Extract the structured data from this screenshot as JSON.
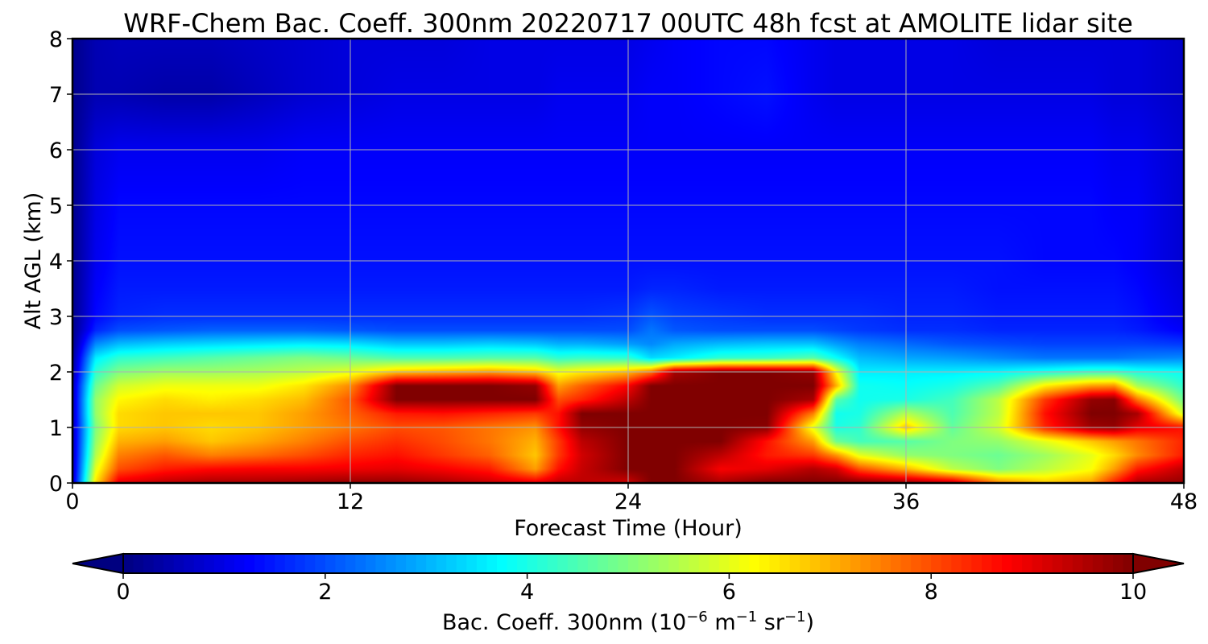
{
  "chart_data": {
    "type": "heatmap",
    "title": "WRF-Chem Bac. Coeff. 300nm  20220717 00UTC 48h fcst at AMOLITE lidar site",
    "xlabel": "Forecast Time (Hour)",
    "ylabel": "Alt AGL (km)",
    "x_ticks": [
      0,
      12,
      24,
      36,
      48
    ],
    "y_ticks": [
      0,
      1,
      2,
      3,
      4,
      5,
      6,
      7,
      8
    ],
    "xlim": [
      0,
      48
    ],
    "ylim": [
      0,
      8
    ],
    "grid": true,
    "colormap": "jet",
    "colorbar": {
      "label_main": "Bac. Coeff. 300nm  (10",
      "label_exp1": "−6",
      "label_mid": " m",
      "label_exp2": "−1",
      "label_sr": " sr",
      "label_exp3": "−1",
      "label_close": ")",
      "ticks": [
        0,
        2,
        4,
        6,
        8,
        10
      ],
      "range": [
        0,
        10
      ],
      "extend": "both",
      "placement": "bottom"
    },
    "x": [
      0,
      1,
      2,
      4,
      6,
      8,
      10,
      12,
      14,
      16,
      18,
      20,
      21,
      22,
      24,
      25,
      26,
      28,
      30,
      32,
      33,
      34,
      36,
      38,
      40,
      42,
      44,
      45,
      46,
      48
    ],
    "y": [
      0,
      0.25,
      0.5,
      0.75,
      1.0,
      1.25,
      1.5,
      1.75,
      2.0,
      2.25,
      2.5,
      2.75,
      3.0,
      3.5,
      4.0,
      5.0,
      6.0,
      7.0,
      8.0
    ],
    "z": [
      [
        0.6,
        6.5,
        9.0,
        9.4,
        9.6,
        9.6,
        9.7,
        9.8,
        9.8,
        9.6,
        9.3,
        9.0,
        9.4,
        9.4,
        9.2,
        10.0,
        10.0,
        9.6,
        10.0,
        10.0,
        10.0,
        10.0,
        9.8,
        9.4,
        7.5,
        6.8,
        7.2,
        8.5,
        9.6,
        9.8
      ],
      [
        0.5,
        6.0,
        8.0,
        8.5,
        8.7,
        8.8,
        8.8,
        8.9,
        9.0,
        8.8,
        8.5,
        7.2,
        8.6,
        9.3,
        10.0,
        10.0,
        10.0,
        8.8,
        9.0,
        9.5,
        9.2,
        8.0,
        7.0,
        5.6,
        5.0,
        5.6,
        6.2,
        7.2,
        8.5,
        9.4
      ],
      [
        0.5,
        5.5,
        7.5,
        7.9,
        7.5,
        7.7,
        8.0,
        8.4,
        8.6,
        8.2,
        7.8,
        6.8,
        8.2,
        9.2,
        10.0,
        10.0,
        10.0,
        9.4,
        8.5,
        8.2,
        7.3,
        6.0,
        5.2,
        5.0,
        4.8,
        5.3,
        6.0,
        6.6,
        7.4,
        8.5
      ],
      [
        0.5,
        5.2,
        7.0,
        7.2,
        6.8,
        7.1,
        7.5,
        8.0,
        8.3,
        8.0,
        7.6,
        7.0,
        8.2,
        9.4,
        10.0,
        10.0,
        10.0,
        10.0,
        8.6,
        7.2,
        4.8,
        4.4,
        4.6,
        5.0,
        5.2,
        6.0,
        6.8,
        7.2,
        7.6,
        8.4
      ],
      [
        0.5,
        5.0,
        6.6,
        6.8,
        6.6,
        6.8,
        7.2,
        7.6,
        8.0,
        7.9,
        7.6,
        7.3,
        8.6,
        9.8,
        10.0,
        10.0,
        10.0,
        10.0,
        9.9,
        6.0,
        4.0,
        4.2,
        6.8,
        4.7,
        5.8,
        8.4,
        9.7,
        9.8,
        9.0,
        8.6
      ],
      [
        0.5,
        5.2,
        6.6,
        6.8,
        6.8,
        6.8,
        7.2,
        7.8,
        8.5,
        8.6,
        8.4,
        8.2,
        8.6,
        10.0,
        10.0,
        10.0,
        10.0,
        10.0,
        10.0,
        7.5,
        3.9,
        4.0,
        5.5,
        4.5,
        5.6,
        8.6,
        10.0,
        10.0,
        9.6,
        5.8
      ],
      [
        0.5,
        5.2,
        6.3,
        6.6,
        6.4,
        6.6,
        6.9,
        7.9,
        10.0,
        10.0,
        10.0,
        10.0,
        8.0,
        8.4,
        9.4,
        10.0,
        10.0,
        10.0,
        10.0,
        9.6,
        4.6,
        3.9,
        4.0,
        4.4,
        5.6,
        8.2,
        9.8,
        9.9,
        7.6,
        4.8
      ],
      [
        0.5,
        4.8,
        5.8,
        6.1,
        6.1,
        6.1,
        6.5,
        7.4,
        10.0,
        10.0,
        10.0,
        9.8,
        7.2,
        7.8,
        8.8,
        10.0,
        10.0,
        10.0,
        10.0,
        10.0,
        7.0,
        3.9,
        3.8,
        4.0,
        4.6,
        6.4,
        7.2,
        7.3,
        5.4,
        4.2
      ],
      [
        0.3,
        4.2,
        5.0,
        5.3,
        5.3,
        5.4,
        5.6,
        6.0,
        6.8,
        7.0,
        7.2,
        6.8,
        6.1,
        6.4,
        6.9,
        7.6,
        9.6,
        10.0,
        10.0,
        9.8,
        6.2,
        3.6,
        3.6,
        3.6,
        3.7,
        4.0,
        4.3,
        4.3,
        4.0,
        3.8
      ],
      [
        0.2,
        3.6,
        4.2,
        4.4,
        4.6,
        4.8,
        5.0,
        4.8,
        4.5,
        4.5,
        4.6,
        4.6,
        4.2,
        4.3,
        4.2,
        3.4,
        3.6,
        4.2,
        4.3,
        4.6,
        3.8,
        3.1,
        2.9,
        2.8,
        2.6,
        2.4,
        2.4,
        2.4,
        2.5,
        2.6
      ],
      [
        0.1,
        2.6,
        3.1,
        3.3,
        3.4,
        3.5,
        3.6,
        3.5,
        3.2,
        3.2,
        3.3,
        3.2,
        3.0,
        3.0,
        2.8,
        2.6,
        2.9,
        3.1,
        3.2,
        3.2,
        2.8,
        2.5,
        2.3,
        2.1,
        2.0,
        1.9,
        1.9,
        1.9,
        1.9,
        1.8
      ],
      [
        0.1,
        1.6,
        2.0,
        2.1,
        2.2,
        2.2,
        2.2,
        2.1,
        2.0,
        2.0,
        2.0,
        2.0,
        2.0,
        2.0,
        2.0,
        2.4,
        2.1,
        2.0,
        2.0,
        2.0,
        1.9,
        1.8,
        1.7,
        1.7,
        1.6,
        1.6,
        1.6,
        1.6,
        1.5,
        1.2
      ],
      [
        0.1,
        1.3,
        1.6,
        1.7,
        1.7,
        1.7,
        1.7,
        1.7,
        1.7,
        1.7,
        1.7,
        1.7,
        1.7,
        1.7,
        1.8,
        2.1,
        1.9,
        1.8,
        1.7,
        1.7,
        1.7,
        1.7,
        1.6,
        1.6,
        1.5,
        1.5,
        1.5,
        1.5,
        1.4,
        1.0
      ],
      [
        0.1,
        1.2,
        1.5,
        1.5,
        1.5,
        1.5,
        1.5,
        1.5,
        1.5,
        1.5,
        1.5,
        1.5,
        1.5,
        1.5,
        1.5,
        1.6,
        1.6,
        1.5,
        1.5,
        1.5,
        1.5,
        1.5,
        1.5,
        1.5,
        1.4,
        1.4,
        1.4,
        1.4,
        1.3,
        0.9
      ],
      [
        0.1,
        1.1,
        1.4,
        1.4,
        1.4,
        1.4,
        1.4,
        1.4,
        1.4,
        1.4,
        1.4,
        1.4,
        1.4,
        1.4,
        1.4,
        1.4,
        1.4,
        1.4,
        1.4,
        1.4,
        1.4,
        1.4,
        1.4,
        1.4,
        1.4,
        1.3,
        1.3,
        1.3,
        1.2,
        0.8
      ],
      [
        0.1,
        1.0,
        1.3,
        1.3,
        1.3,
        1.3,
        1.3,
        1.3,
        1.3,
        1.3,
        1.3,
        1.3,
        1.3,
        1.3,
        1.3,
        1.3,
        1.3,
        1.3,
        1.3,
        1.3,
        1.3,
        1.3,
        1.3,
        1.3,
        1.3,
        1.3,
        1.3,
        1.2,
        1.2,
        0.8
      ],
      [
        0.1,
        0.9,
        1.1,
        1.1,
        1.1,
        1.1,
        1.2,
        1.2,
        1.2,
        1.2,
        1.2,
        1.2,
        1.2,
        1.2,
        1.2,
        1.2,
        1.2,
        1.2,
        1.2,
        1.2,
        1.2,
        1.2,
        1.2,
        1.2,
        1.2,
        1.2,
        1.2,
        1.1,
        1.1,
        0.8
      ],
      [
        0.1,
        0.5,
        0.5,
        0.4,
        0.4,
        0.6,
        0.8,
        0.9,
        1.0,
        1.0,
        1.0,
        1.0,
        1.1,
        1.1,
        1.1,
        1.2,
        1.2,
        1.3,
        1.4,
        1.1,
        1.0,
        1.0,
        1.0,
        1.0,
        1.0,
        1.0,
        1.0,
        0.9,
        0.9,
        0.7
      ],
      [
        0.1,
        0.5,
        0.6,
        0.6,
        0.6,
        0.7,
        0.8,
        0.9,
        0.9,
        0.9,
        1.0,
        1.0,
        1.0,
        1.0,
        1.0,
        1.1,
        1.2,
        1.3,
        1.3,
        1.1,
        1.0,
        1.0,
        1.0,
        1.0,
        0.9,
        0.9,
        0.9,
        0.9,
        0.9,
        0.7
      ]
    ]
  }
}
